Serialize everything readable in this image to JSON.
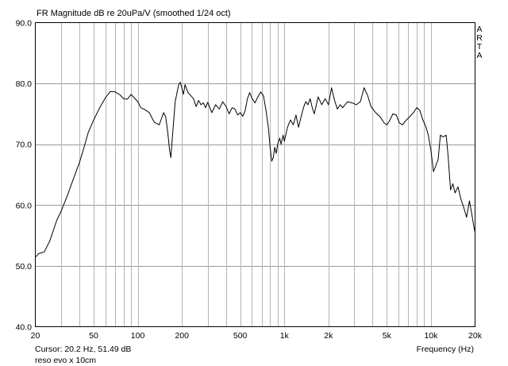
{
  "chart_data": {
    "type": "line",
    "title": "FR Magnitude dB re 20uPa/V (smoothed 1/24 oct)",
    "watermark": [
      "A",
      "R",
      "T",
      "A"
    ],
    "xlabel": "Frequency (Hz)",
    "ylabel": "",
    "x_scale": "log",
    "xlim": [
      20,
      20000
    ],
    "ylim": [
      40,
      90
    ],
    "grid": true,
    "y_ticks": [
      "90.0",
      "80.0",
      "70.0",
      "60.0",
      "50.0",
      "40.0"
    ],
    "x_ticks": [
      {
        "value": 20,
        "label": "20"
      },
      {
        "value": 50,
        "label": "50"
      },
      {
        "value": 100,
        "label": "100"
      },
      {
        "value": 200,
        "label": "200"
      },
      {
        "value": 500,
        "label": "500"
      },
      {
        "value": 1000,
        "label": "1k"
      },
      {
        "value": 2000,
        "label": "2k"
      },
      {
        "value": 5000,
        "label": "5k"
      },
      {
        "value": 10000,
        "label": "10k"
      },
      {
        "value": 20000,
        "label": "20k"
      }
    ],
    "series": [
      {
        "color": "#000000",
        "points": [
          [
            20.2,
            51.5
          ],
          [
            21,
            52.0
          ],
          [
            23,
            52.3
          ],
          [
            25,
            54.0
          ],
          [
            28,
            57.5
          ],
          [
            30,
            59.0
          ],
          [
            33,
            61.5
          ],
          [
            36,
            64.0
          ],
          [
            40,
            67.0
          ],
          [
            43,
            69.5
          ],
          [
            46,
            72.0
          ],
          [
            50,
            74.0
          ],
          [
            55,
            76.0
          ],
          [
            60,
            77.6
          ],
          [
            65,
            78.7
          ],
          [
            70,
            78.6
          ],
          [
            75,
            78.2
          ],
          [
            80,
            77.5
          ],
          [
            85,
            77.4
          ],
          [
            90,
            78.2
          ],
          [
            95,
            77.6
          ],
          [
            100,
            77.0
          ],
          [
            105,
            76.0
          ],
          [
            110,
            75.8
          ],
          [
            120,
            75.2
          ],
          [
            125,
            74.3
          ],
          [
            130,
            73.6
          ],
          [
            140,
            73.2
          ],
          [
            145,
            74.2
          ],
          [
            150,
            75.2
          ],
          [
            155,
            74.5
          ],
          [
            160,
            72.0
          ],
          [
            165,
            69.0
          ],
          [
            168,
            67.8
          ],
          [
            172,
            71.0
          ],
          [
            180,
            77.0
          ],
          [
            190,
            79.8
          ],
          [
            195,
            80.2
          ],
          [
            200,
            79.2
          ],
          [
            205,
            78.2
          ],
          [
            210,
            79.8
          ],
          [
            220,
            78.5
          ],
          [
            230,
            78.0
          ],
          [
            240,
            77.5
          ],
          [
            250,
            76.2
          ],
          [
            260,
            77.2
          ],
          [
            270,
            76.5
          ],
          [
            280,
            76.8
          ],
          [
            290,
            76.0
          ],
          [
            300,
            76.9
          ],
          [
            320,
            75.2
          ],
          [
            340,
            76.5
          ],
          [
            360,
            75.8
          ],
          [
            380,
            77.0
          ],
          [
            400,
            76.2
          ],
          [
            420,
            75.0
          ],
          [
            440,
            76.0
          ],
          [
            460,
            75.8
          ],
          [
            480,
            74.8
          ],
          [
            500,
            75.2
          ],
          [
            520,
            74.6
          ],
          [
            540,
            75.5
          ],
          [
            560,
            77.5
          ],
          [
            580,
            78.5
          ],
          [
            600,
            77.6
          ],
          [
            630,
            76.8
          ],
          [
            660,
            77.8
          ],
          [
            690,
            78.6
          ],
          [
            720,
            78.0
          ],
          [
            750,
            75.5
          ],
          [
            780,
            72.5
          ],
          [
            800,
            69.5
          ],
          [
            820,
            67.2
          ],
          [
            840,
            67.8
          ],
          [
            860,
            69.5
          ],
          [
            880,
            68.5
          ],
          [
            900,
            70.0
          ],
          [
            930,
            71.0
          ],
          [
            950,
            70.0
          ],
          [
            980,
            71.5
          ],
          [
            1000,
            70.5
          ],
          [
            1050,
            72.8
          ],
          [
            1100,
            74.0
          ],
          [
            1150,
            73.2
          ],
          [
            1200,
            74.8
          ],
          [
            1250,
            72.8
          ],
          [
            1300,
            74.5
          ],
          [
            1350,
            76.0
          ],
          [
            1400,
            77.0
          ],
          [
            1450,
            76.5
          ],
          [
            1500,
            77.5
          ],
          [
            1550,
            76.0
          ],
          [
            1600,
            75.0
          ],
          [
            1700,
            77.8
          ],
          [
            1800,
            76.5
          ],
          [
            1900,
            77.5
          ],
          [
            2000,
            76.5
          ],
          [
            2100,
            79.3
          ],
          [
            2200,
            77.2
          ],
          [
            2300,
            75.8
          ],
          [
            2400,
            76.5
          ],
          [
            2500,
            76.0
          ],
          [
            2700,
            77.0
          ],
          [
            2900,
            76.8
          ],
          [
            3100,
            76.5
          ],
          [
            3300,
            77.0
          ],
          [
            3500,
            79.3
          ],
          [
            3700,
            78.0
          ],
          [
            3900,
            76.2
          ],
          [
            4200,
            75.2
          ],
          [
            4500,
            74.5
          ],
          [
            4800,
            73.5
          ],
          [
            5000,
            73.2
          ],
          [
            5200,
            73.8
          ],
          [
            5500,
            75.0
          ],
          [
            5800,
            74.8
          ],
          [
            6100,
            73.5
          ],
          [
            6400,
            73.2
          ],
          [
            6800,
            74.0
          ],
          [
            7200,
            74.6
          ],
          [
            7600,
            75.2
          ],
          [
            8000,
            76.0
          ],
          [
            8400,
            75.6
          ],
          [
            8800,
            74.0
          ],
          [
            9200,
            73.0
          ],
          [
            9600,
            71.5
          ],
          [
            10000,
            69.0
          ],
          [
            10400,
            65.5
          ],
          [
            10800,
            66.5
          ],
          [
            11200,
            67.5
          ],
          [
            11600,
            71.5
          ],
          [
            12100,
            71.2
          ],
          [
            12700,
            71.5
          ],
          [
            13100,
            68.0
          ],
          [
            13600,
            62.5
          ],
          [
            14100,
            63.5
          ],
          [
            14600,
            62.0
          ],
          [
            15300,
            63.0
          ],
          [
            16000,
            61.0
          ],
          [
            16800,
            59.5
          ],
          [
            17500,
            58.0
          ],
          [
            18300,
            60.7
          ],
          [
            19000,
            58.5
          ],
          [
            19600,
            56.5
          ],
          [
            20000,
            55.5
          ]
        ]
      }
    ]
  },
  "status": {
    "cursor_text": "Cursor: 20.2 Hz, 51.49 dB",
    "comment": "reso evo x 10cm"
  }
}
